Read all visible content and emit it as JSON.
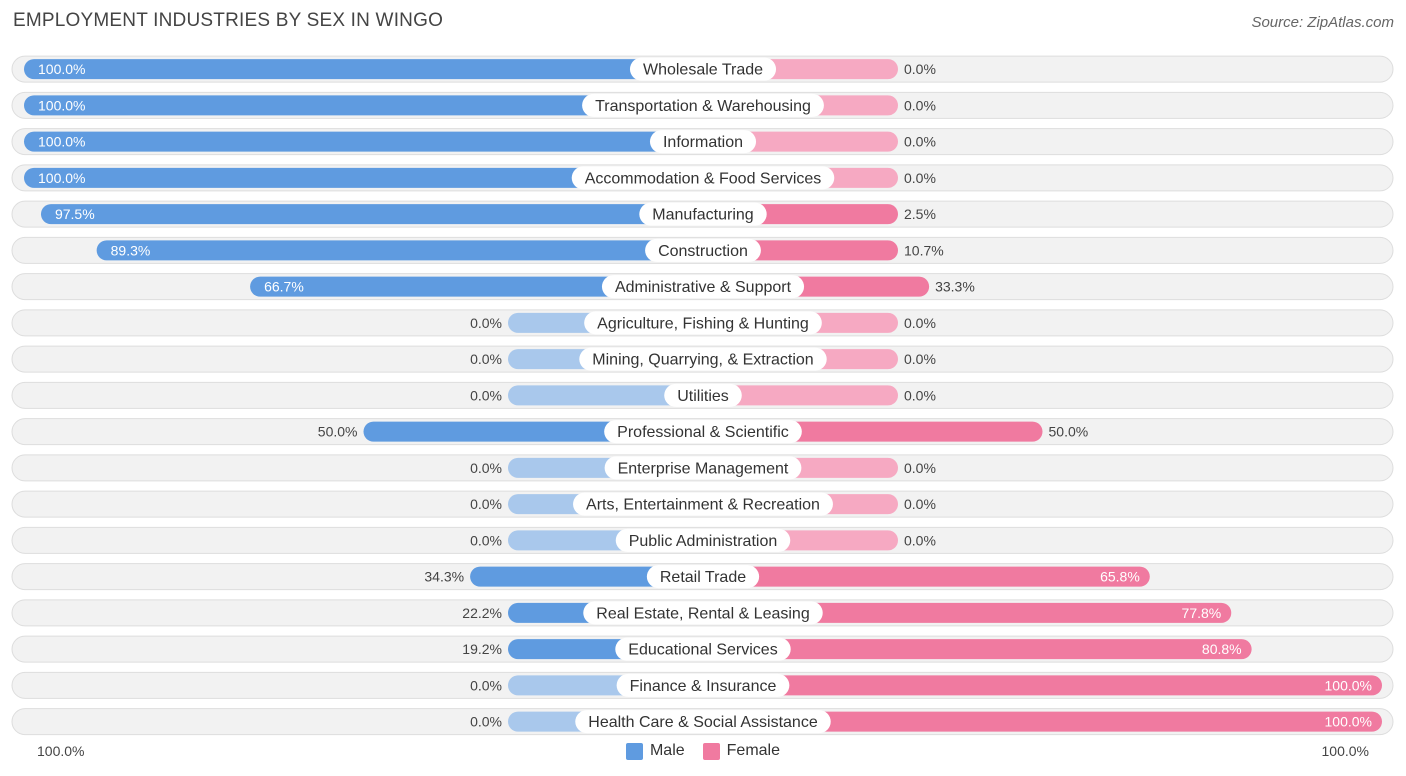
{
  "title": "EMPLOYMENT INDUSTRIES BY SEX IN WINGO",
  "source": "Source: ZipAtlas.com",
  "colors": {
    "male": "#5f9be0",
    "male_light": "#a9c8ec",
    "female": "#f07aa0",
    "female_light": "#f6a9c2",
    "row_bg": "#f2f2f2",
    "row_border": "#dddddd"
  },
  "axis": {
    "left_label": "100.0%",
    "right_label": "100.0%"
  },
  "legend": {
    "male": "Male",
    "female": "Female"
  },
  "chart_data": {
    "type": "bar",
    "orientation": "horizontal-diverging",
    "categories": [
      "Wholesale Trade",
      "Transportation & Warehousing",
      "Information",
      "Accommodation & Food Services",
      "Manufacturing",
      "Construction",
      "Administrative & Support",
      "Agriculture, Fishing & Hunting",
      "Mining, Quarrying, & Extraction",
      "Utilities",
      "Professional & Scientific",
      "Enterprise Management",
      "Arts, Entertainment & Recreation",
      "Public Administration",
      "Retail Trade",
      "Real Estate, Rental & Leasing",
      "Educational Services",
      "Finance & Insurance",
      "Health Care & Social Assistance"
    ],
    "series": [
      {
        "name": "Male",
        "values": [
          100.0,
          100.0,
          100.0,
          100.0,
          97.5,
          89.3,
          66.7,
          0.0,
          0.0,
          0.0,
          50.0,
          0.0,
          0.0,
          0.0,
          34.3,
          22.2,
          19.2,
          0.0,
          0.0
        ],
        "labels": [
          "100.0%",
          "100.0%",
          "100.0%",
          "100.0%",
          "97.5%",
          "89.3%",
          "66.7%",
          "0.0%",
          "0.0%",
          "0.0%",
          "50.0%",
          "0.0%",
          "0.0%",
          "0.0%",
          "34.3%",
          "22.2%",
          "19.2%",
          "0.0%",
          "0.0%"
        ]
      },
      {
        "name": "Female",
        "values": [
          0.0,
          0.0,
          0.0,
          0.0,
          2.5,
          10.7,
          33.3,
          0.0,
          0.0,
          0.0,
          50.0,
          0.0,
          0.0,
          0.0,
          65.8,
          77.8,
          80.8,
          100.0,
          100.0
        ],
        "labels": [
          "0.0%",
          "0.0%",
          "0.0%",
          "0.0%",
          "2.5%",
          "10.7%",
          "33.3%",
          "0.0%",
          "0.0%",
          "0.0%",
          "50.0%",
          "0.0%",
          "0.0%",
          "0.0%",
          "65.8%",
          "77.8%",
          "80.8%",
          "100.0%",
          "100.0%"
        ]
      }
    ],
    "xlim": [
      0,
      100
    ],
    "legend_position": "bottom-center"
  }
}
